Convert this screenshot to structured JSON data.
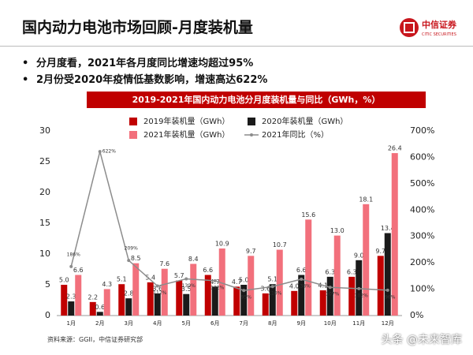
{
  "header": {
    "title": "国内动力电池市场回顾-月度装机量",
    "logo_cn": "中信证券",
    "logo_en": "CITIC SECURITIES"
  },
  "bullets": [
    "分月度看，2021年各月度同比增速均超过95%",
    "2月份受2020年疫情低基数影响，增速高达622%"
  ],
  "chart_data": {
    "type": "bar",
    "title": "2019-2021年国内动力电池分月度装机量与同比（GWh，%）",
    "categories": [
      "1月",
      "2月",
      "3月",
      "4月",
      "5月",
      "6月",
      "7月",
      "8月",
      "9月",
      "10月",
      "11月",
      "12月"
    ],
    "series": [
      {
        "name": "2019年装机量（GWh）",
        "color": "#c00000",
        "values": [
          5.0,
          2.2,
          5.1,
          5.4,
          5.7,
          6.6,
          4.7,
          3.6,
          4.0,
          4.1,
          6.3,
          9.7
        ],
        "value_labels": [
          "5.0",
          "2.2",
          "5.1",
          "5.4",
          "5.7",
          "6.6",
          "4.7",
          "3.6",
          "4.0",
          "4.1",
          "6.3",
          "9.7"
        ]
      },
      {
        "name": "2020年装机量（GWh）",
        "color": "#1a1a1a",
        "values": [
          2.3,
          0.6,
          2.8,
          3.6,
          3.5,
          4.7,
          5.0,
          5.1,
          6.6,
          6.3,
          9.0,
          13.4
        ],
        "value_labels": [
          "2.3",
          "0.6",
          "2.8",
          "3.6",
          "3.5",
          "4.7",
          "5.0",
          "5.1",
          "6.6",
          "6.3",
          "9.0",
          "13.4"
        ]
      },
      {
        "name": "2021年装机量（GWh）",
        "color": "#f2707c",
        "values": [
          6.6,
          4.3,
          8.5,
          7.6,
          8.4,
          10.9,
          9.7,
          10.7,
          15.6,
          13.0,
          18.1,
          26.4
        ],
        "value_labels": [
          "6.6",
          "4.3",
          "8.5",
          "7.6",
          "8.4",
          "10.9",
          "9.7",
          "10.7",
          "15.6",
          "13.0",
          "18.1",
          "26.4"
        ]
      },
      {
        "name": "2021年同比（%）",
        "color": "#8c8c8c",
        "type": "line",
        "axis": "y2",
        "values": [
          186,
          622,
          209,
          112,
          139,
          132,
          95,
          110,
          138,
          107,
          102,
          96
        ],
        "value_labels": [
          "186%",
          "622%",
          "209%",
          "112%",
          "139%",
          "132%",
          "95%",
          "110%",
          "138%",
          "107%",
          "102%",
          "96%"
        ]
      }
    ],
    "ylim": [
      0,
      30
    ],
    "yticks": [
      0,
      5,
      10,
      15,
      20,
      25,
      30
    ],
    "y2lim": [
      0,
      700
    ],
    "y2ticks": [
      {
        "value": 0,
        "label": "0%"
      },
      {
        "value": 100,
        "label": "100%"
      },
      {
        "value": 200,
        "label": "200%"
      },
      {
        "value": 300,
        "label": "300%"
      },
      {
        "value": 400,
        "label": "400%"
      },
      {
        "value": 500,
        "label": "500%"
      },
      {
        "value": 600,
        "label": "600%"
      },
      {
        "value": 700,
        "label": "700%"
      }
    ],
    "grid": false
  },
  "source": "资料来源：GGII，中信证券研究部",
  "watermark": "头条 @未来智库"
}
